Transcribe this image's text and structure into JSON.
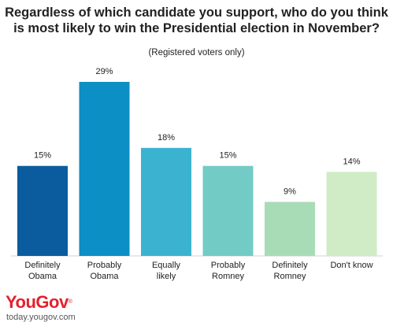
{
  "title_line1": "Regardless of which candidate you support, who do you think",
  "title_line2": "is most likely to win the Presidential election in November?",
  "subtitle": "(Registered voters only)",
  "brand": {
    "logo": "YouGov",
    "registered_mark": "®",
    "url": "today.yougov.com",
    "color": "#e5202e"
  },
  "chart_data": {
    "type": "bar",
    "title": "Regardless of which candidate you support, who do you think is most likely to win the Presidential election in November?",
    "subtitle": "(Registered voters only)",
    "categories": [
      [
        "Definitely",
        "Obama"
      ],
      [
        "Probably",
        "Obama"
      ],
      [
        "Equally",
        "likely"
      ],
      [
        "Probably",
        "Romney"
      ],
      [
        "Definitely",
        "Romney"
      ],
      [
        "Don't know"
      ]
    ],
    "values": [
      15,
      29,
      18,
      15,
      9,
      14
    ],
    "value_labels": [
      "15%",
      "29%",
      "18%",
      "15%",
      "9%",
      "14%"
    ],
    "colors": [
      "#0a5c9e",
      "#0b8fc4",
      "#3bb3d0",
      "#72ccc5",
      "#a8dcb6",
      "#d0ecc6"
    ],
    "ylim": [
      0,
      29
    ],
    "grid": false,
    "legend": "none"
  }
}
